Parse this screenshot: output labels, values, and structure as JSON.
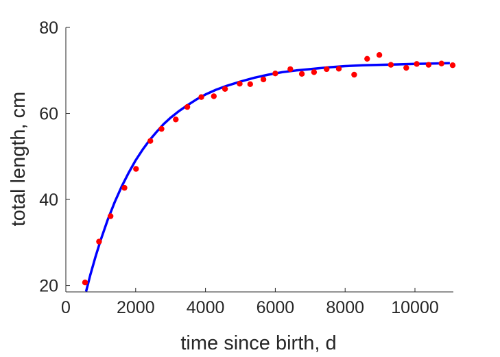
{
  "chart_data": {
    "type": "scatter",
    "title": "",
    "xlabel": "time since birth, d",
    "ylabel": "total length, cm",
    "xlim": [
      0,
      11100
    ],
    "ylim": [
      18.5,
      80
    ],
    "xticks": [
      0,
      2000,
      4000,
      6000,
      8000,
      10000
    ],
    "yticks": [
      20,
      40,
      60,
      80
    ],
    "grid": false,
    "legend": "none",
    "colors": {
      "axis": "#262626",
      "points": "#ff0000",
      "fit": "#0000ff"
    },
    "series": [
      {
        "kind": "points",
        "x": [
          550,
          950,
          1280,
          1680,
          2010,
          2420,
          2740,
          3150,
          3480,
          3880,
          4240,
          4560,
          4980,
          5280,
          5660,
          6000,
          6430,
          6760,
          7110,
          7470,
          7820,
          8260,
          8630,
          8980,
          9310,
          9750,
          10050,
          10390,
          10760,
          11080
        ],
        "y": [
          20.7,
          30.2,
          36.1,
          42.7,
          47.1,
          53.6,
          56.4,
          58.6,
          61.5,
          63.8,
          64.0,
          65.7,
          66.9,
          66.8,
          67.9,
          69.3,
          70.3,
          69.2,
          69.6,
          70.3,
          70.4,
          69.0,
          72.7,
          73.6,
          71.3,
          70.6,
          71.5,
          71.3,
          71.6,
          71.2
        ]
      },
      {
        "kind": "fit_curve",
        "x": [
          580,
          700,
          850,
          1000,
          1200,
          1400,
          1600,
          1800,
          2000,
          2200,
          2400,
          2600,
          2800,
          3000,
          3250,
          3500,
          3750,
          4000,
          4300,
          4600,
          5000,
          5400,
          5800,
          6200,
          6600,
          7000,
          7500,
          8000,
          8500,
          9000,
          9500,
          10000,
          10500,
          11000
        ],
        "y": [
          18.6,
          22.4,
          26.7,
          30.6,
          35.3,
          39.4,
          43.0,
          46.2,
          49.1,
          51.6,
          53.8,
          55.7,
          57.5,
          59.0,
          60.6,
          62.0,
          63.3,
          64.4,
          65.5,
          66.4,
          67.4,
          68.3,
          69.0,
          69.6,
          70.0,
          70.3,
          70.7,
          71.0,
          71.2,
          71.3,
          71.4,
          71.5,
          71.6,
          71.7
        ]
      }
    ]
  }
}
